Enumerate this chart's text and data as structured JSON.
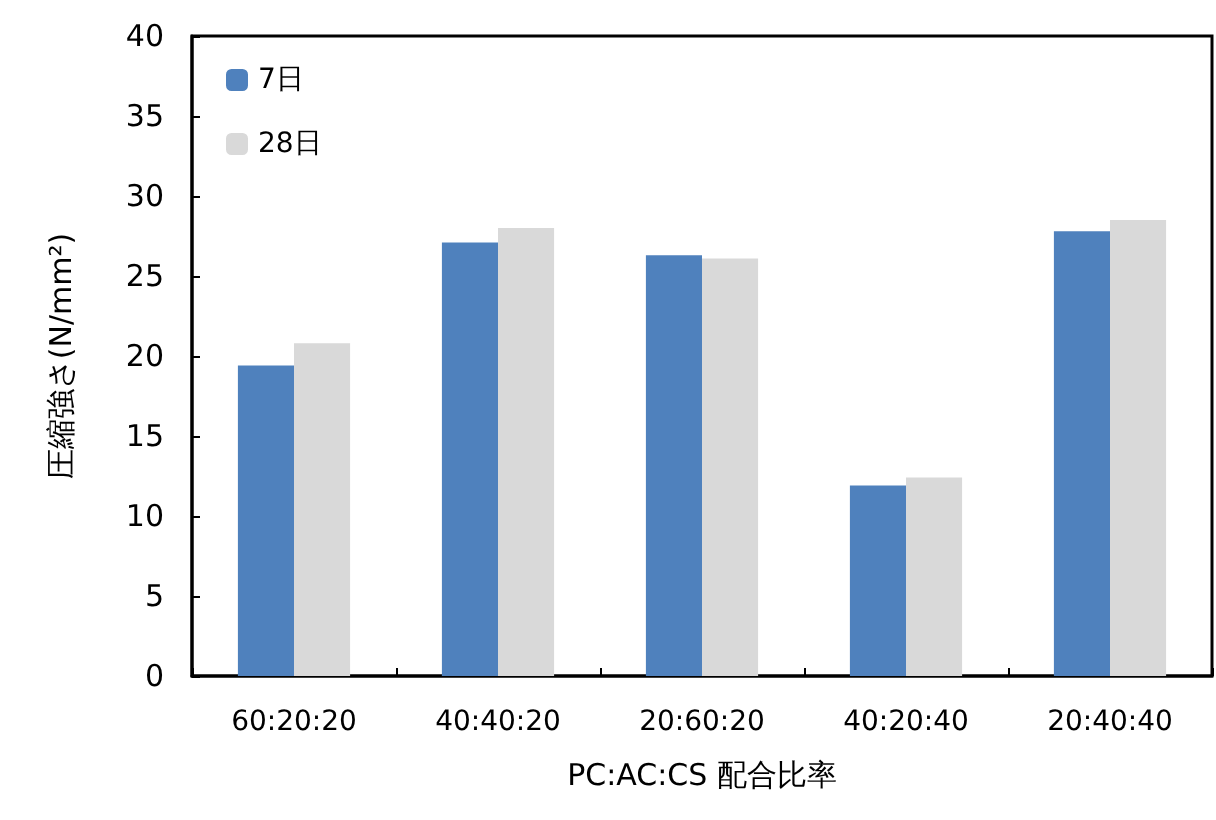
{
  "chart_data": {
    "type": "bar",
    "xlabel": "PC:AC:CS 配合比率",
    "ylabel": "圧縮強さ(N/mm²)",
    "categories": [
      "60:20:20",
      "40:40:20",
      "20:60:20",
      "40:20:40",
      "20:40:40"
    ],
    "series": [
      {
        "name": "7日",
        "color": "#4f81bd",
        "values": [
          19.4,
          27.1,
          26.3,
          11.9,
          27.8
        ]
      },
      {
        "name": "28日",
        "color": "#d9d9d9",
        "values": [
          20.8,
          28.0,
          26.1,
          12.4,
          28.5
        ]
      }
    ],
    "ylim": [
      0,
      40
    ],
    "yticks": [
      0,
      5,
      10,
      15,
      20,
      25,
      30,
      35,
      40
    ],
    "grid": false,
    "legend": "top left"
  }
}
